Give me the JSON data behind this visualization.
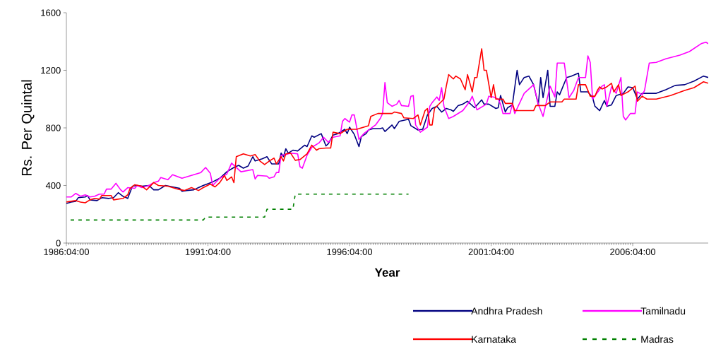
{
  "chart_data": {
    "type": "line",
    "xlabel": "Year",
    "ylabel": "Rs. Per Quintal",
    "xlim": [
      "1986-04",
      "2008-12"
    ],
    "ylim": [
      0,
      1600
    ],
    "yticks": [
      0,
      400,
      800,
      1200,
      1600
    ],
    "xticks": [
      {
        "value": "1986-04",
        "label": "1986:04:00"
      },
      {
        "value": "1991-04",
        "label": "1991:04:00"
      },
      {
        "value": "1996-04",
        "label": "1996:04:00"
      },
      {
        "value": "2001-04",
        "label": "2001:04:00"
      },
      {
        "value": "2006-04",
        "label": "2006:04:00"
      }
    ],
    "legend": "bottom right",
    "grid": false,
    "marker": "none",
    "series": [
      {
        "name": "Andhra Pradesh",
        "color": "#000080",
        "line_style": "solid",
        "x": [
          "1986-04",
          "1986-06",
          "1986-08",
          "1986-09",
          "1986-12",
          "1987-01",
          "1987-02",
          "1987-05",
          "1987-07",
          "1987-10",
          "1987-12",
          "1988-02",
          "1988-04",
          "1988-06",
          "1988-08",
          "1988-10",
          "1988-12",
          "1989-03",
          "1989-05",
          "1989-07",
          "1989-10",
          "1990-01",
          "1990-04",
          "1990-05",
          "1990-07",
          "1990-10",
          "1990-12",
          "1991-02",
          "1991-06",
          "1991-09",
          "1991-12",
          "1992-03",
          "1992-05",
          "1992-07",
          "1992-09",
          "1992-11",
          "1992-12",
          "1993-03",
          "1993-05",
          "1993-07",
          "1993-10",
          "1993-11",
          "1993-12",
          "1994-01",
          "1994-02",
          "1994-04",
          "1994-06",
          "1994-09",
          "1994-10",
          "1994-12",
          "1995-01",
          "1995-04",
          "1995-06",
          "1995-07",
          "1995-09",
          "1995-11",
          "1996-02",
          "1996-03",
          "1996-04",
          "1996-06",
          "1996-08",
          "1996-09",
          "1996-11",
          "1996-12",
          "1997-02",
          "1997-05",
          "1997-06",
          "1997-07",
          "1997-10",
          "1997-11",
          "1998-01",
          "1998-05",
          "1998-06",
          "1998-09",
          "1998-11",
          "1999-01",
          "1999-03",
          "1999-05",
          "1999-07",
          "1999-09",
          "1999-11",
          "1999-12",
          "2000-02",
          "2000-04",
          "2000-06",
          "2000-09",
          "2000-12",
          "2001-01",
          "2001-03",
          "2001-06",
          "2001-07",
          "2001-08",
          "2001-10",
          "2001-11",
          "2002-01",
          "2002-03",
          "2002-04",
          "2002-06",
          "2002-08",
          "2002-10",
          "2002-12",
          "2003-01",
          "2003-02",
          "2003-04",
          "2003-05",
          "2003-07",
          "2003-08",
          "2003-09",
          "2003-12",
          "2004-02",
          "2004-05",
          "2004-06",
          "2004-09",
          "2004-11",
          "2004-12",
          "2005-02",
          "2005-04",
          "2005-05",
          "2005-07",
          "2005-09",
          "2005-12",
          "2006-02",
          "2006-04",
          "2006-06",
          "2006-08",
          "2007-02",
          "2007-06",
          "2007-10",
          "2008-02",
          "2008-06",
          "2008-10",
          "2008-12"
        ],
        "values": [
          275,
          285,
          290,
          315,
          320,
          330,
          300,
          295,
          315,
          310,
          315,
          350,
          325,
          310,
          395,
          400,
          395,
          400,
          370,
          370,
          400,
          390,
          380,
          360,
          365,
          370,
          385,
          400,
          425,
          450,
          495,
          525,
          540,
          520,
          535,
          600,
          570,
          585,
          600,
          550,
          550,
          625,
          600,
          655,
          625,
          645,
          640,
          680,
          670,
          745,
          735,
          760,
          675,
          690,
          750,
          760,
          790,
          760,
          805,
          755,
          670,
          740,
          760,
          785,
          795,
          795,
          800,
          775,
          820,
          795,
          845,
          860,
          815,
          785,
          790,
          890,
          935,
          950,
          910,
          935,
          925,
          915,
          955,
          965,
          985,
          940,
          995,
          965,
          965,
          935,
          940,
          1025,
          910,
          940,
          960,
          1200,
          1100,
          1150,
          1160,
          1100,
          960,
          1150,
          1010,
          1200,
          950,
          950,
          1050,
          1030,
          1150,
          1160,
          1180,
          1050,
          1050,
          1010,
          950,
          920,
          990,
          950,
          960,
          1025,
          1040,
          1085,
          1080,
          1000,
          1040,
          1040,
          1065,
          1095,
          1100,
          1125,
          1160,
          1150
        ]
      },
      {
        "name": "Tamilnadu",
        "color": "#ff00ff",
        "line_style": "solid",
        "x": [
          "1986-04",
          "1986-06",
          "1986-08",
          "1986-10",
          "1986-12",
          "1987-02",
          "1987-04",
          "1987-06",
          "1987-08",
          "1987-09",
          "1987-11",
          "1988-01",
          "1988-03",
          "1988-04",
          "1988-06",
          "1988-09",
          "1988-10",
          "1988-12",
          "1989-03",
          "1989-05",
          "1989-07",
          "1989-08",
          "1989-11",
          "1990-01",
          "1990-05",
          "1990-08",
          "1990-11",
          "1991-01",
          "1991-03",
          "1991-05",
          "1991-06",
          "1991-09",
          "1991-12",
          "1992-02",
          "1992-06",
          "1992-11",
          "1992-12",
          "1993-01",
          "1993-05",
          "1993-06",
          "1993-08",
          "1993-09",
          "1993-10",
          "1993-11",
          "1994-01",
          "1994-03",
          "1994-06",
          "1994-07",
          "1994-08",
          "1994-10",
          "1994-12",
          "1995-03",
          "1995-05",
          "1995-07",
          "1995-09",
          "1995-12",
          "1996-01",
          "1996-02",
          "1996-04",
          "1996-05",
          "1996-06",
          "1996-08",
          "1996-10",
          "1996-12",
          "1997-03",
          "1997-05",
          "1997-06",
          "1997-07",
          "1997-08",
          "1997-10",
          "1997-12",
          "1998-01",
          "1998-02",
          "1998-05",
          "1998-06",
          "1998-07",
          "1998-08",
          "1998-10",
          "1999-01",
          "1999-02",
          "1999-03",
          "1999-05",
          "1999-06",
          "1999-07",
          "1999-08",
          "1999-10",
          "1999-12",
          "2000-04",
          "2000-07",
          "2000-08",
          "2000-10",
          "2001-02",
          "2001-03",
          "2001-05",
          "2001-07",
          "2001-08",
          "2001-09",
          "2001-12",
          "2002-01",
          "2002-02",
          "2002-06",
          "2002-10",
          "2002-12",
          "2003-02",
          "2003-05",
          "2003-07",
          "2003-08",
          "2003-11",
          "2004-01",
          "2004-03",
          "2004-05",
          "2004-08",
          "2004-09",
          "2004-10",
          "2004-11",
          "2005-03",
          "2005-04",
          "2005-05",
          "2005-07",
          "2005-09",
          "2005-11",
          "2005-12",
          "2006-01",
          "2006-03",
          "2006-05",
          "2006-06",
          "2006-08",
          "2006-09",
          "2006-11",
          "2007-02",
          "2007-06",
          "2007-12",
          "2008-04",
          "2008-09",
          "2008-11",
          "2008-12"
        ],
        "values": [
          320,
          320,
          345,
          325,
          335,
          320,
          325,
          340,
          340,
          375,
          375,
          415,
          370,
          355,
          385,
          380,
          400,
          385,
          400,
          420,
          430,
          455,
          440,
          475,
          450,
          465,
          480,
          490,
          525,
          485,
          400,
          450,
          480,
          555,
          495,
          510,
          445,
          470,
          465,
          450,
          460,
          490,
          490,
          610,
          615,
          625,
          620,
          530,
          520,
          610,
          665,
          695,
          735,
          700,
          735,
          745,
          845,
          865,
          840,
          890,
          890,
          720,
          760,
          785,
          820,
          865,
          900,
          1115,
          975,
          950,
          965,
          990,
          955,
          950,
          1020,
          1025,
          820,
          770,
          805,
          950,
          975,
          1015,
          990,
          1080,
          950,
          865,
          880,
          920,
          985,
          1020,
          925,
          965,
          1020,
          1015,
          1000,
          965,
          900,
          900,
          965,
          900,
          1040,
          1100,
          965,
          880,
          1090,
          1015,
          1250,
          1250,
          1010,
          1060,
          1150,
          1150,
          1300,
          1255,
          1000,
          1090,
          1100,
          950,
          1085,
          1040,
          1150,
          880,
          855,
          900,
          900,
          1050,
          1030,
          1060,
          1250,
          1255,
          1280,
          1305,
          1330,
          1385,
          1395,
          1385
        ]
      },
      {
        "name": "Karnataka",
        "color": "#ff0000",
        "line_style": "solid",
        "x": [
          "1986-04",
          "1986-08",
          "1986-10",
          "1986-12",
          "1987-02",
          "1987-04",
          "1987-06",
          "1987-07",
          "1987-11",
          "1987-12",
          "1988-04",
          "1988-06",
          "1988-07",
          "1988-09",
          "1988-12",
          "1989-02",
          "1989-05",
          "1989-07",
          "1989-11",
          "1990-03",
          "1990-06",
          "1990-09",
          "1990-12",
          "1991-02",
          "1991-05",
          "1991-07",
          "1991-09",
          "1991-11",
          "1991-12",
          "1992-02",
          "1992-03",
          "1992-04",
          "1992-07",
          "1992-10",
          "1992-12",
          "1993-02",
          "1993-04",
          "1993-06",
          "1993-08",
          "1993-09",
          "1993-11",
          "1993-12",
          "1994-01",
          "1994-03",
          "1994-05",
          "1994-07",
          "1994-10",
          "1994-12",
          "1995-02",
          "1995-03",
          "1995-06",
          "1995-08",
          "1995-09",
          "1995-12",
          "1996-03",
          "1996-07",
          "1996-10",
          "1996-12",
          "1997-01",
          "1997-04",
          "1997-10",
          "1997-11",
          "1998-02",
          "1998-03",
          "1998-07",
          "1998-09",
          "1998-10",
          "1998-12",
          "1999-01",
          "1999-02",
          "1999-03",
          "1999-04",
          "1999-08",
          "1999-09",
          "1999-10",
          "1999-12",
          "2000-01",
          "2000-03",
          "2000-05",
          "2000-06",
          "2000-08",
          "2000-09",
          "2000-10",
          "2000-12",
          "2001-01",
          "2001-02",
          "2001-04",
          "2001-05",
          "2001-06",
          "2001-09",
          "2001-10",
          "2002-01",
          "2002-02",
          "2002-10",
          "2002-11",
          "2003-03",
          "2003-05",
          "2003-10",
          "2003-11",
          "2004-04",
          "2004-05",
          "2004-08",
          "2004-10",
          "2004-12",
          "2005-01",
          "2005-02",
          "2005-03",
          "2005-05",
          "2005-07",
          "2005-08",
          "2005-10",
          "2005-11",
          "2006-02",
          "2006-05",
          "2006-06",
          "2006-08",
          "2006-10",
          "2007-02",
          "2007-08",
          "2008-02",
          "2008-06",
          "2008-10",
          "2008-12"
        ],
        "values": [
          285,
          295,
          285,
          280,
          300,
          310,
          305,
          330,
          330,
          300,
          310,
          335,
          380,
          405,
          395,
          370,
          420,
          400,
          395,
          375,
          365,
          385,
          365,
          385,
          410,
          390,
          420,
          470,
          435,
          460,
          420,
          600,
          620,
          605,
          615,
          570,
          545,
          570,
          590,
          550,
          600,
          570,
          620,
          625,
          575,
          580,
          620,
          680,
          645,
          655,
          660,
          660,
          770,
          760,
          790,
          790,
          805,
          815,
          880,
          900,
          900,
          910,
          900,
          870,
          865,
          890,
          820,
          920,
          935,
          820,
          820,
          935,
          1000,
          1090,
          1170,
          1140,
          1160,
          1140,
          1065,
          1170,
          1050,
          1150,
          1150,
          1350,
          1200,
          1200,
          1010,
          1100,
          1000,
          1000,
          970,
          970,
          920,
          920,
          955,
          955,
          980,
          980,
          1000,
          1000,
          1100,
          1100,
          1020,
          1020,
          1060,
          1085,
          1070,
          1085,
          1110,
          1050,
          1100,
          1025,
          1050,
          1090,
          985,
          1020,
          1000,
          1000,
          1025,
          1060,
          1080,
          1120,
          1110
        ]
      },
      {
        "name": "Madras",
        "color": "#008000",
        "line_style": "dashed",
        "x": [
          "1986-04",
          "1991-02",
          "1991-03",
          "1993-04",
          "1993-05",
          "1994-04",
          "1994-05",
          "1998-05"
        ],
        "values": [
          160,
          160,
          180,
          180,
          235,
          235,
          340,
          340
        ]
      }
    ]
  }
}
